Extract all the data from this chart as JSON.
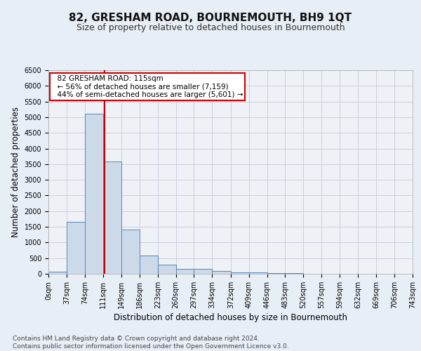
{
  "title": "82, GRESHAM ROAD, BOURNEMOUTH, BH9 1QT",
  "subtitle": "Size of property relative to detached houses in Bournemouth",
  "xlabel": "Distribution of detached houses by size in Bournemouth",
  "ylabel": "Number of detached properties",
  "bin_edges": [
    0,
    37,
    74,
    111,
    149,
    186,
    223,
    260,
    297,
    334,
    372,
    409,
    446,
    483,
    520,
    557,
    594,
    632,
    669,
    706,
    743
  ],
  "bar_heights": [
    70,
    1650,
    5100,
    3580,
    1420,
    580,
    300,
    160,
    150,
    100,
    50,
    50,
    30,
    15,
    10,
    5,
    5,
    5,
    5,
    5
  ],
  "bar_color": "#ccd9e8",
  "bar_edgecolor": "#5588bb",
  "grid_color": "#ccccdd",
  "property_x": 115,
  "property_size": "115sqm",
  "pct_smaller": 56,
  "count_smaller": 7159,
  "pct_larger_semi": 44,
  "count_larger_semi": 5601,
  "vline_color": "#cc0000",
  "annotation_box_color": "#cc0000",
  "ylim": [
    0,
    6500
  ],
  "xlim": [
    0,
    743
  ],
  "tick_labels": [
    "0sqm",
    "37sqm",
    "74sqm",
    "111sqm",
    "149sqm",
    "186sqm",
    "223sqm",
    "260sqm",
    "297sqm",
    "334sqm",
    "372sqm",
    "409sqm",
    "446sqm",
    "483sqm",
    "520sqm",
    "557sqm",
    "594sqm",
    "632sqm",
    "669sqm",
    "706sqm",
    "743sqm"
  ],
  "yticks": [
    0,
    500,
    1000,
    1500,
    2000,
    2500,
    3000,
    3500,
    4000,
    4500,
    5000,
    5500,
    6000,
    6500
  ],
  "footer_line1": "Contains HM Land Registry data © Crown copyright and database right 2024.",
  "footer_line2": "Contains public sector information licensed under the Open Government Licence v3.0.",
  "background_color": "#e8eef5",
  "plot_bg_color": "#eef2f7",
  "title_fontsize": 11,
  "subtitle_fontsize": 9,
  "axis_label_fontsize": 8.5,
  "tick_fontsize": 7,
  "footer_fontsize": 6.5,
  "annot_fontsize": 7.5
}
